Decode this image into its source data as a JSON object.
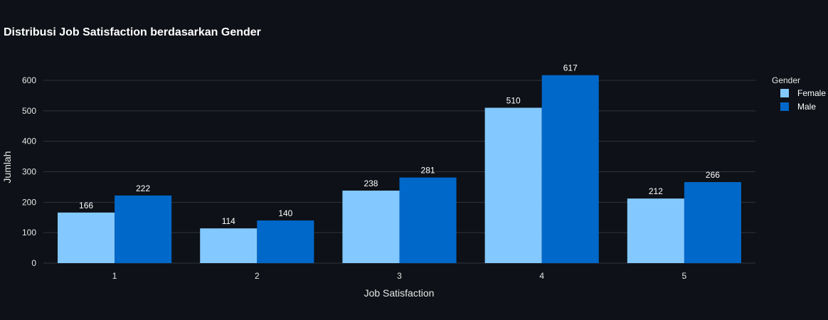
{
  "chart_data": {
    "type": "bar",
    "title": "Distribusi Job Satisfaction berdasarkan Gender",
    "xlabel": "Job Satisfaction",
    "ylabel": "Jumlah",
    "categories": [
      "1",
      "2",
      "3",
      "4",
      "5"
    ],
    "series": [
      {
        "name": "Female",
        "values": [
          166,
          114,
          238,
          510,
          212
        ],
        "color": "#83c9ff"
      },
      {
        "name": "Male",
        "values": [
          222,
          140,
          281,
          617,
          266
        ],
        "color": "#0068c9"
      }
    ],
    "ylim": [
      0,
      649
    ],
    "yticks": [
      0,
      100,
      200,
      300,
      400,
      500,
      600
    ],
    "grid": true,
    "legend": {
      "title": "Gender",
      "position": "top-right"
    }
  }
}
